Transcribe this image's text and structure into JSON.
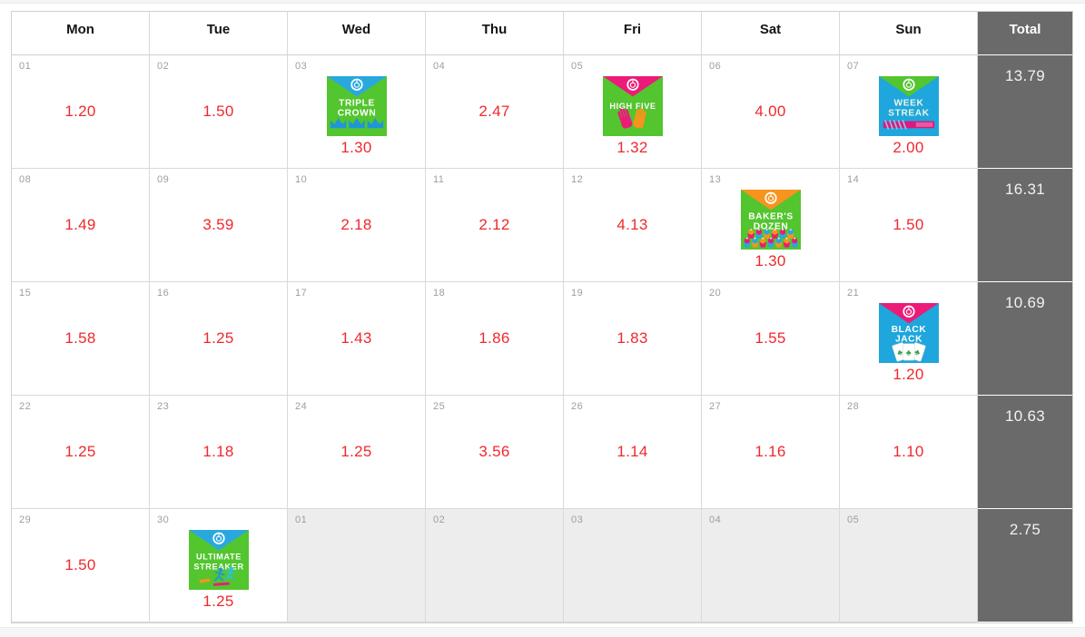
{
  "header": {
    "days": [
      "Mon",
      "Tue",
      "Wed",
      "Thu",
      "Fri",
      "Sat",
      "Sun"
    ],
    "total_label": "Total"
  },
  "weeks": [
    {
      "total": "13.79",
      "days": [
        {
          "num": "01",
          "value": "1.20"
        },
        {
          "num": "02",
          "value": "1.50"
        },
        {
          "num": "03",
          "value": "1.30",
          "badge": "triple_crown"
        },
        {
          "num": "04",
          "value": "2.47"
        },
        {
          "num": "05",
          "value": "1.32",
          "badge": "high_five"
        },
        {
          "num": "06",
          "value": "4.00"
        },
        {
          "num": "07",
          "value": "2.00",
          "badge": "week_streak"
        }
      ]
    },
    {
      "total": "16.31",
      "days": [
        {
          "num": "08",
          "value": "1.49"
        },
        {
          "num": "09",
          "value": "3.59"
        },
        {
          "num": "10",
          "value": "2.18"
        },
        {
          "num": "11",
          "value": "2.12"
        },
        {
          "num": "12",
          "value": "4.13"
        },
        {
          "num": "13",
          "value": "1.30",
          "badge": "bakers_dozen"
        },
        {
          "num": "14",
          "value": "1.50"
        }
      ]
    },
    {
      "total": "10.69",
      "days": [
        {
          "num": "15",
          "value": "1.58"
        },
        {
          "num": "16",
          "value": "1.25"
        },
        {
          "num": "17",
          "value": "1.43"
        },
        {
          "num": "18",
          "value": "1.86"
        },
        {
          "num": "19",
          "value": "1.83"
        },
        {
          "num": "20",
          "value": "1.55"
        },
        {
          "num": "21",
          "value": "1.20",
          "badge": "black_jack"
        }
      ]
    },
    {
      "total": "10.63",
      "days": [
        {
          "num": "22",
          "value": "1.25"
        },
        {
          "num": "23",
          "value": "1.18"
        },
        {
          "num": "24",
          "value": "1.25"
        },
        {
          "num": "25",
          "value": "3.56"
        },
        {
          "num": "26",
          "value": "1.14"
        },
        {
          "num": "27",
          "value": "1.16"
        },
        {
          "num": "28",
          "value": "1.10"
        }
      ]
    },
    {
      "total": "2.75",
      "days": [
        {
          "num": "29",
          "value": "1.50"
        },
        {
          "num": "30",
          "value": "1.25",
          "badge": "ultimate_streaker"
        },
        {
          "num": "01",
          "out": true
        },
        {
          "num": "02",
          "out": true
        },
        {
          "num": "03",
          "out": true
        },
        {
          "num": "04",
          "out": true
        },
        {
          "num": "05",
          "out": true
        }
      ]
    }
  ],
  "badges": {
    "triple_crown": {
      "name": "Triple Crown",
      "lines": [
        "TRIPLE",
        "CROWN"
      ],
      "bg": "#53c52f",
      "flap": "#29a8e0",
      "text_color": "#ffffff",
      "decor": "crowns"
    },
    "high_five": {
      "name": "High Five",
      "lines": [
        "HIGH FIVE"
      ],
      "bg": "#53c52f",
      "flap": "#ec1a78",
      "text_color": "#ffffff",
      "decor": "hands"
    },
    "week_streak": {
      "name": "Week Streak",
      "lines": [
        "WEEK",
        "STREAK"
      ],
      "bg": "#1ea6dd",
      "flap": "#53c52f",
      "text_color": "#e9f7e5",
      "decor": "streak"
    },
    "bakers_dozen": {
      "name": "Baker's Dozen",
      "lines": [
        "BAKER'S",
        "DOZEN"
      ],
      "bg": "#53c52f",
      "flap": "#f7941e",
      "text_color": "#ffffff",
      "decor": "cupcakes"
    },
    "black_jack": {
      "name": "Black Jack",
      "lines": [
        "BLACK",
        "JACK"
      ],
      "bg": "#1ea6dd",
      "flap": "#ec1a78",
      "text_color": "#ffffff",
      "decor": "cards"
    },
    "ultimate_streaker": {
      "name": "Ultimate Streaker",
      "lines": [
        "ULTIMATE",
        "STREAKER"
      ],
      "bg": "#53c52f",
      "flap": "#29a8e0",
      "text_color": "#ffffff",
      "decor": "runners"
    }
  },
  "colors": {
    "value_red": "#f0282d",
    "total_bg": "#6a6a6a",
    "out_month_bg": "#ededed",
    "border": "#d9d9d9",
    "day_number": "#9e9e9e"
  }
}
